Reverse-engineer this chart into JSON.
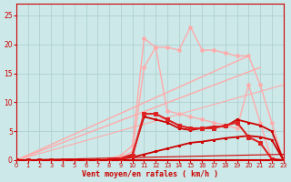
{
  "bg_color": "#cce8e8",
  "grid_color": "#aacccc",
  "xlabel": "Vent moyen/en rafales ( km/h )",
  "xlabel_color": "#cc0000",
  "tick_color": "#cc0000",
  "xlim": [
    0,
    23
  ],
  "ylim": [
    0,
    27
  ],
  "x_ticks": [
    0,
    1,
    2,
    3,
    4,
    5,
    6,
    7,
    8,
    9,
    10,
    11,
    12,
    13,
    14,
    15,
    16,
    17,
    18,
    19,
    20,
    21,
    22,
    23
  ],
  "y_ticks": [
    0,
    5,
    10,
    15,
    20,
    25
  ],
  "lines": [
    {
      "x": [
        0,
        20
      ],
      "y": [
        0,
        18
      ],
      "color": "#ffaaaa",
      "lw": 1.0,
      "marker": null
    },
    {
      "x": [
        0,
        21
      ],
      "y": [
        0,
        16
      ],
      "color": "#ffaaaa",
      "lw": 1.0,
      "marker": null
    },
    {
      "x": [
        0,
        23
      ],
      "y": [
        0,
        13
      ],
      "color": "#ffaaaa",
      "lw": 0.8,
      "marker": null
    },
    {
      "x": [
        0,
        1,
        2,
        3,
        4,
        5,
        6,
        7,
        8,
        9,
        10,
        11,
        12,
        13,
        14,
        15,
        16,
        17,
        18,
        19,
        20,
        21,
        22,
        23
      ],
      "y": [
        0,
        0,
        0,
        0,
        0,
        0,
        0,
        0,
        0.3,
        0.8,
        2.5,
        21.0,
        19.5,
        19.5,
        19.0,
        23.0,
        19.0,
        19.0,
        18.5,
        18.0,
        18.0,
        13.0,
        6.5,
        0
      ],
      "color": "#ffaaaa",
      "lw": 1.0,
      "marker": "o",
      "ms": 2.5
    },
    {
      "x": [
        0,
        1,
        2,
        3,
        4,
        5,
        6,
        7,
        8,
        9,
        10,
        11,
        12,
        13,
        14,
        15,
        16,
        17,
        18,
        19,
        20,
        21,
        22,
        23
      ],
      "y": [
        0,
        0,
        0,
        0,
        0,
        0,
        0,
        0,
        0.2,
        0.5,
        1.5,
        16.0,
        19.5,
        8.5,
        8.0,
        7.5,
        7.0,
        6.5,
        6.0,
        5.5,
        13.0,
        6.5,
        0,
        0
      ],
      "color": "#ffaaaa",
      "lw": 1.0,
      "marker": "o",
      "ms": 2.5
    },
    {
      "x": [
        0,
        1,
        2,
        3,
        4,
        5,
        6,
        7,
        8,
        9,
        10,
        11,
        12,
        13,
        14,
        15,
        16,
        17,
        18,
        19,
        20,
        21,
        22,
        23
      ],
      "y": [
        0,
        0,
        0,
        0,
        0,
        0,
        0,
        0,
        0,
        0.3,
        1.0,
        7.5,
        7.0,
        6.5,
        5.5,
        5.2,
        5.5,
        5.8,
        5.8,
        7.0,
        6.5,
        6.0,
        5.0,
        0
      ],
      "color": "#cc0000",
      "lw": 1.3,
      "marker": "s",
      "ms": 2.0
    },
    {
      "x": [
        0,
        1,
        2,
        3,
        4,
        5,
        6,
        7,
        8,
        9,
        10,
        11,
        12,
        13,
        14,
        15,
        16,
        17,
        18,
        19,
        20,
        21,
        22,
        23
      ],
      "y": [
        0,
        0,
        0,
        0,
        0,
        0,
        0,
        0,
        0,
        0.2,
        0.5,
        1.0,
        1.5,
        2.0,
        2.5,
        3.0,
        3.2,
        3.5,
        3.8,
        4.0,
        4.2,
        4.0,
        3.5,
        0
      ],
      "color": "#cc0000",
      "lw": 1.3,
      "marker": "s",
      "ms": 2.0
    },
    {
      "x": [
        0,
        23
      ],
      "y": [
        0,
        1.0
      ],
      "color": "#cc0000",
      "lw": 0.8,
      "marker": null
    },
    {
      "x": [
        0,
        1,
        2,
        3,
        4,
        5,
        6,
        7,
        8,
        9,
        10,
        11,
        12,
        13,
        14,
        15,
        16,
        17,
        18,
        19,
        20,
        21,
        22,
        23
      ],
      "y": [
        0,
        0,
        0,
        0,
        0,
        0,
        0,
        0,
        0,
        0.2,
        0.8,
        8.0,
        8.0,
        7.0,
        6.0,
        5.5,
        5.5,
        5.5,
        6.0,
        6.5,
        4.0,
        3.0,
        0.2,
        0
      ],
      "color": "#dd2222",
      "lw": 1.5,
      "marker": "s",
      "ms": 2.5
    }
  ]
}
